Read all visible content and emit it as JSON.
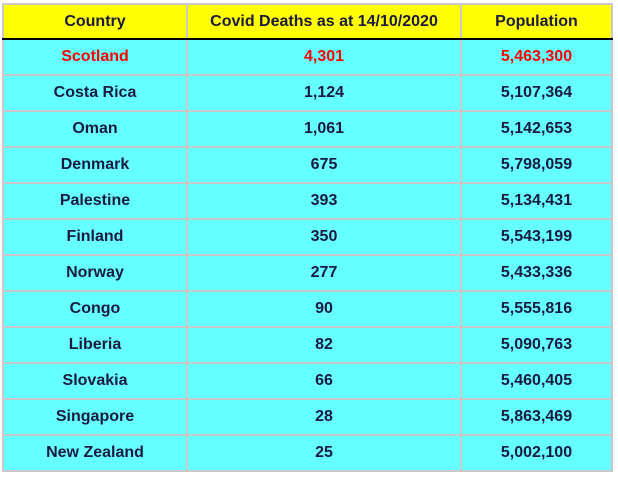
{
  "table": {
    "header": [
      "Country",
      "Covid Deaths as at 14/10/2020",
      "Population"
    ],
    "rows": [
      [
        "Scotland",
        "4,301",
        "5,463,300"
      ],
      [
        "Costa Rica",
        "1,124",
        "5,107,364"
      ],
      [
        "Oman",
        "1,061",
        "5,142,653"
      ],
      [
        "Denmark",
        "675",
        "5,798,059"
      ],
      [
        "Palestine",
        "393",
        "5,134,431"
      ],
      [
        "Finland",
        "350",
        "5,543,199"
      ],
      [
        "Norway",
        "277",
        "5,433,336"
      ],
      [
        "Congo",
        "90",
        "5,555,816"
      ],
      [
        "Liberia",
        "82",
        "5,090,763"
      ],
      [
        "Slovakia",
        "66",
        "5,460,405"
      ],
      [
        "Singapore",
        "28",
        "5,863,469"
      ],
      [
        "New Zealand",
        "25",
        "5,002,100"
      ]
    ]
  }
}
